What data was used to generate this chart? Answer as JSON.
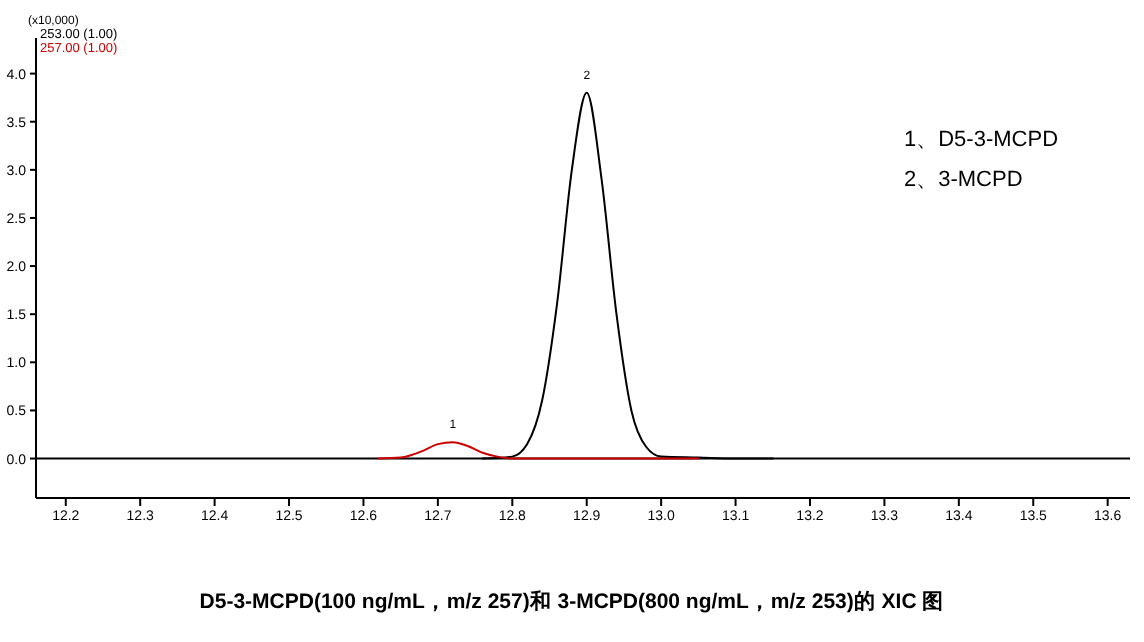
{
  "chart_data": {
    "type": "line",
    "title": "D5-3-MCPD(100 ng/mL，m/z 257)和 3-MCPD(800 ng/mL，m/z 253)的 XIC 图",
    "annotations": [
      "(x10,000)",
      "1、D5-3-MCPD",
      "2、3-MCPD",
      {
        "text": "1",
        "x": 12.72,
        "y": 0.17
      },
      {
        "text": "2",
        "x": 12.9,
        "y": 3.8
      }
    ],
    "series": [
      {
        "name": "253.00 (1.00)",
        "color": "#000000",
        "x": [
          12.76,
          12.8,
          12.82,
          12.84,
          12.86,
          12.88,
          12.9,
          12.92,
          12.94,
          12.96,
          12.98,
          13.0,
          13.05,
          13.1,
          13.15
        ],
        "values": [
          0,
          0.02,
          0.15,
          0.6,
          1.6,
          3.0,
          3.8,
          2.9,
          1.5,
          0.5,
          0.12,
          0.02,
          0.01,
          0,
          0
        ]
      },
      {
        "name": "257.00 (1.00)",
        "color": "#cc0000",
        "x": [
          12.62,
          12.65,
          12.68,
          12.7,
          12.72,
          12.74,
          12.76,
          12.78,
          12.8,
          12.9,
          13.05
        ],
        "values": [
          0,
          0.01,
          0.08,
          0.15,
          0.17,
          0.13,
          0.06,
          0.02,
          0,
          0,
          0
        ]
      }
    ],
    "xlim": [
      12.16,
      13.63
    ],
    "ylim": [
      -0.41,
      4.37
    ],
    "xticks": [
      {
        "value": 12.2,
        "label": "12.2"
      },
      {
        "value": 12.3,
        "label": "12.3"
      },
      {
        "value": 12.4,
        "label": "12.4"
      },
      {
        "value": 12.5,
        "label": "12.5"
      },
      {
        "value": 12.6,
        "label": "12.6"
      },
      {
        "value": 12.7,
        "label": "12.7"
      },
      {
        "value": 12.8,
        "label": "12.8"
      },
      {
        "value": 12.9,
        "label": "12.9"
      },
      {
        "value": 13,
        "label": "13.0"
      },
      {
        "value": 13.1,
        "label": "13.1"
      },
      {
        "value": 13.2,
        "label": "13.2"
      },
      {
        "value": 13.3,
        "label": "13.3"
      },
      {
        "value": 13.4,
        "label": "13.4"
      },
      {
        "value": 13.5,
        "label": "13.5"
      },
      {
        "value": 13.6,
        "label": "13.6"
      }
    ],
    "yticks": [
      {
        "value": 0,
        "label": "0.0"
      },
      {
        "value": 0.5,
        "label": "0.5"
      },
      {
        "value": 1,
        "label": "1.0"
      },
      {
        "value": 1.5,
        "label": "1.5"
      },
      {
        "value": 2,
        "label": "2.0"
      },
      {
        "value": 2.5,
        "label": "2.5"
      },
      {
        "value": 3,
        "label": "3.0"
      },
      {
        "value": 3.5,
        "label": "3.5"
      },
      {
        "value": 4,
        "label": "4.0"
      }
    ],
    "ref_lines": [
      {
        "axis": "y",
        "value": 0,
        "color": "#000000"
      }
    ],
    "legend": "top left",
    "grid": false,
    "marker": "none",
    "line_style": "solid"
  }
}
